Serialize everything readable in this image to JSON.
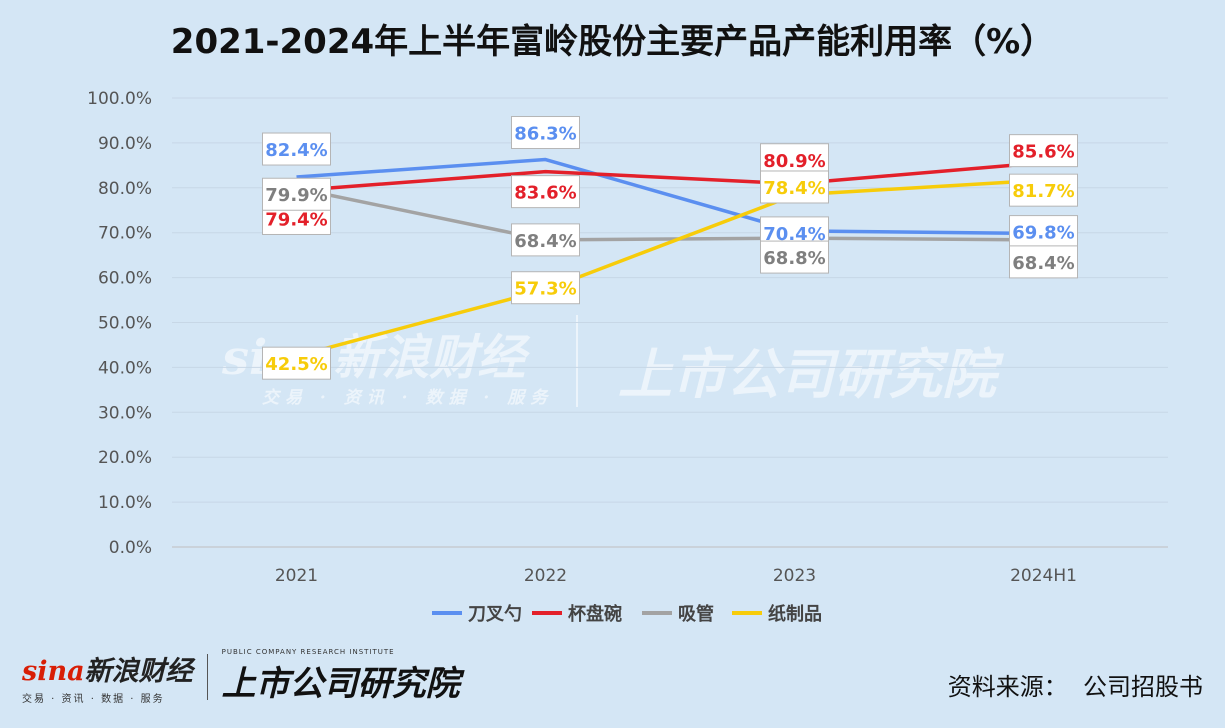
{
  "title": "2021-2024年上半年富岭股份主要产品产能利用率（%）",
  "source_label": "资料来源：",
  "source_value": "公司招股书",
  "watermark": {
    "logo_text": "sina新浪财经",
    "logo_tagline": "交易 · 资讯 · 数据 · 服务",
    "institute_text": "上市公司研究院",
    "institute_sub": "PUBLIC COMPANY RESEARCH INSTITUTE"
  },
  "footer": {
    "sina_mark": "sina",
    "brand_text": "新浪财经",
    "tagline": "交易 · 资讯 · 数据 · 服务",
    "institute_sub": "PUBLIC COMPANY RESEARCH INSTITUTE",
    "institute_text": "上市公司研究院"
  },
  "chart_data": {
    "type": "line",
    "categories": [
      "2021",
      "2022",
      "2023",
      "2024H1"
    ],
    "ylim": [
      0,
      100
    ],
    "yticks": [
      "0.0%",
      "10.0%",
      "20.0%",
      "30.0%",
      "40.0%",
      "50.0%",
      "60.0%",
      "70.0%",
      "80.0%",
      "90.0%",
      "100.0%"
    ],
    "grid": true,
    "legend_position": "bottom",
    "series": [
      {
        "name": "刀叉勺",
        "color": "#5b8ff0",
        "values": [
          82.4,
          86.3,
          70.4,
          69.8
        ],
        "labels": [
          "82.4%",
          "86.3%",
          "70.4%",
          "69.8%"
        ]
      },
      {
        "name": "杯盘碗",
        "color": "#e3202a",
        "values": [
          79.4,
          83.6,
          80.9,
          85.6
        ],
        "labels": [
          "79.4%",
          "83.6%",
          "80.9%",
          "85.6%"
        ]
      },
      {
        "name": "吸管",
        "color": "#a3a3a3",
        "values": [
          79.9,
          68.4,
          68.8,
          68.4
        ],
        "labels": [
          "79.9%",
          "68.4%",
          "68.8%",
          "68.4%"
        ]
      },
      {
        "name": "纸制品",
        "color": "#f7cc0a",
        "values": [
          42.5,
          57.3,
          78.4,
          81.7
        ],
        "labels": [
          "42.5%",
          "57.3%",
          "78.4%",
          "81.7%"
        ]
      }
    ]
  }
}
